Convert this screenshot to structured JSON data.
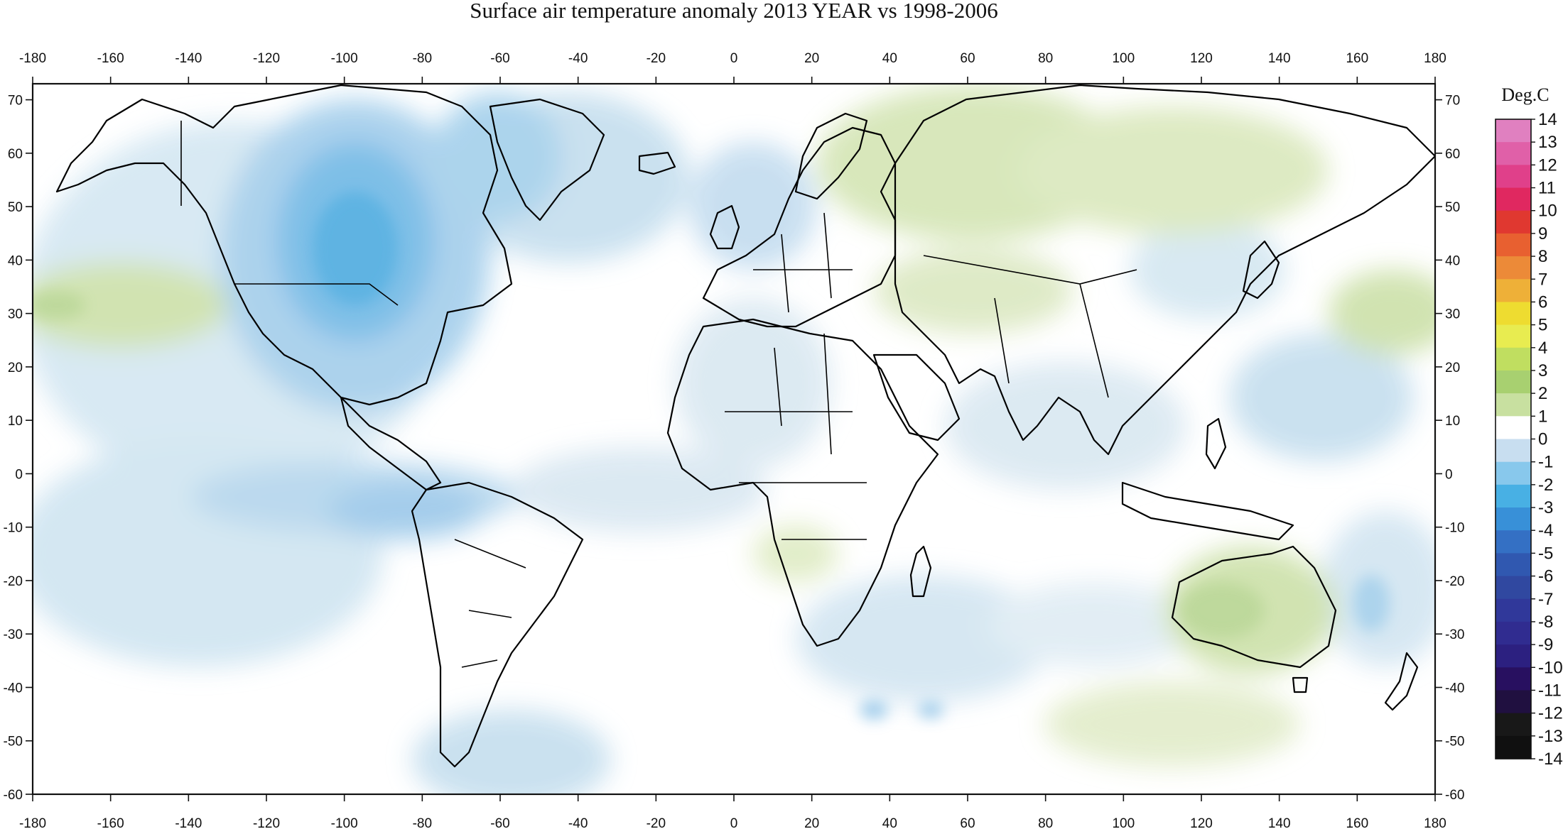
{
  "title": "Surface air temperature anomaly 2013 YEAR vs 1998-2006",
  "map": {
    "projection": "equirectangular",
    "lon_range": [
      -180,
      180
    ],
    "lat_range": [
      -60,
      73
    ],
    "lon_ticks": [
      "-180",
      "-160",
      "-140",
      "-120",
      "-100",
      "-80",
      "-60",
      "-40",
      "-20",
      "0",
      "20",
      "40",
      "60",
      "80",
      "100",
      "120",
      "140",
      "160",
      "180"
    ],
    "lat_ticks": [
      "70",
      "60",
      "50",
      "40",
      "30",
      "20",
      "10",
      "0",
      "-10",
      "-20",
      "-30",
      "-40",
      "-50",
      "-60"
    ],
    "layers": [
      "temperature-anomaly-field",
      "coastlines",
      "country-borders"
    ],
    "anomaly_regions": [
      {
        "name": "north-america-cold",
        "lon": -95,
        "lat": 42,
        "anomaly": -2.5
      },
      {
        "name": "south-america-pacific-cold",
        "lon": -85,
        "lat": -8,
        "anomaly": -1.5
      },
      {
        "name": "north-atlantic-cold",
        "lon": -45,
        "lat": 58,
        "anomaly": -1
      },
      {
        "name": "western-europe-cold",
        "lon": 0,
        "lat": 45,
        "anomaly": -1
      },
      {
        "name": "north-pacific-warm",
        "lon": -170,
        "lat": 30,
        "anomaly": 1
      },
      {
        "name": "northwest-pacific-warm",
        "lon": 170,
        "lat": 30,
        "anomaly": 1
      },
      {
        "name": "siberia-warm",
        "lon": 80,
        "lat": 60,
        "anomaly": 1
      },
      {
        "name": "russia-warm",
        "lon": 50,
        "lat": 62,
        "anomaly": 1
      },
      {
        "name": "australia-warm",
        "lon": 135,
        "lat": -25,
        "anomaly": 1
      },
      {
        "name": "east-china-cold",
        "lon": 125,
        "lat": 20,
        "anomaly": -1
      },
      {
        "name": "southern-ocean-cold",
        "lon": -50,
        "lat": -55,
        "anomaly": -1
      }
    ]
  },
  "legend": {
    "title": "Deg.C",
    "labels": [
      "14",
      "13",
      "12",
      "11",
      "10",
      "9",
      "8",
      "7",
      "6",
      "5",
      "4",
      "3",
      "2",
      "1",
      "0",
      "-1",
      "-2",
      "-3",
      "-4",
      "-5",
      "-6",
      "-7",
      "-8",
      "-9",
      "-10",
      "-11",
      "-12",
      "-13",
      "-14"
    ],
    "colors": [
      "#e080c0",
      "#e060a8",
      "#e0408a",
      "#e02860",
      "#e03830",
      "#e86030",
      "#ec8a38",
      "#eeb038",
      "#eedc30",
      "#e8ec50",
      "#c0de60",
      "#a8d070",
      "#c8e0a0",
      "#ffffff",
      "#c8def0",
      "#88c8ec",
      "#48b0e4",
      "#3890d8",
      "#3470c4",
      "#3058b0",
      "#3048a0",
      "#30389a",
      "#302c90",
      "#2c2080",
      "#281060",
      "#201040",
      "#181818",
      "#101010"
    ]
  },
  "colors": {
    "frame": "#111111",
    "land_outline": "#000000",
    "background": "#ffffff"
  }
}
